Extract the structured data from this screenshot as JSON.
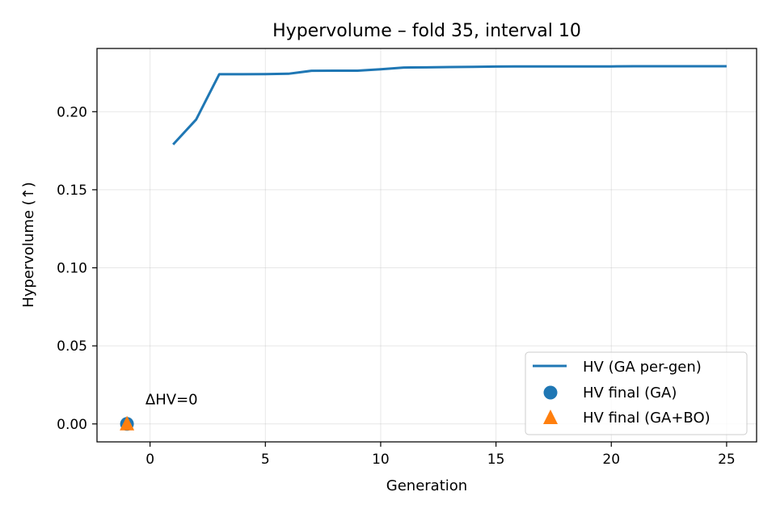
{
  "chart_data": {
    "type": "line",
    "title": "Hypervolume – fold 35, interval 10",
    "xlabel": "Generation",
    "ylabel": "Hypervolume (↑)",
    "xlim": [
      -2.3,
      26.3
    ],
    "ylim": [
      -0.0115,
      0.2405
    ],
    "xticks": [
      0,
      5,
      10,
      15,
      20,
      25
    ],
    "yticks": [
      0.0,
      0.05,
      0.1,
      0.15,
      0.2
    ],
    "xtick_labels": [
      "0",
      "5",
      "10",
      "15",
      "20",
      "25"
    ],
    "ytick_labels": [
      "0.00",
      "0.05",
      "0.10",
      "0.15",
      "0.20"
    ],
    "grid": true,
    "legend_position": "lower-right",
    "series": [
      {
        "name": "HV (GA per-gen)",
        "kind": "line",
        "color": "#1f77b4",
        "x": [
          1,
          2,
          3,
          4,
          5,
          6,
          7,
          8,
          9,
          10,
          11,
          12,
          13,
          14,
          15,
          16,
          17,
          18,
          19,
          20,
          21,
          22,
          23,
          24,
          25
        ],
        "y": [
          0.179,
          0.195,
          0.224,
          0.224,
          0.2241,
          0.2243,
          0.2262,
          0.2263,
          0.2263,
          0.2272,
          0.2283,
          0.2284,
          0.2286,
          0.2287,
          0.2289,
          0.229,
          0.229,
          0.229,
          0.229,
          0.229,
          0.2291,
          0.2291,
          0.2291,
          0.2291,
          0.2291
        ]
      },
      {
        "name": "HV final (GA)",
        "kind": "scatter",
        "marker": "circle",
        "color": "#1f77b4",
        "x": [
          -1
        ],
        "y": [
          0.0
        ]
      },
      {
        "name": "HV final (GA+BO)",
        "kind": "scatter",
        "marker": "triangle",
        "color": "#ff7f0e",
        "x": [
          -1
        ],
        "y": [
          0.0
        ]
      }
    ],
    "annotations": [
      {
        "text": "ΔHV=0",
        "x": -0.2,
        "y": 0.0125
      }
    ]
  }
}
